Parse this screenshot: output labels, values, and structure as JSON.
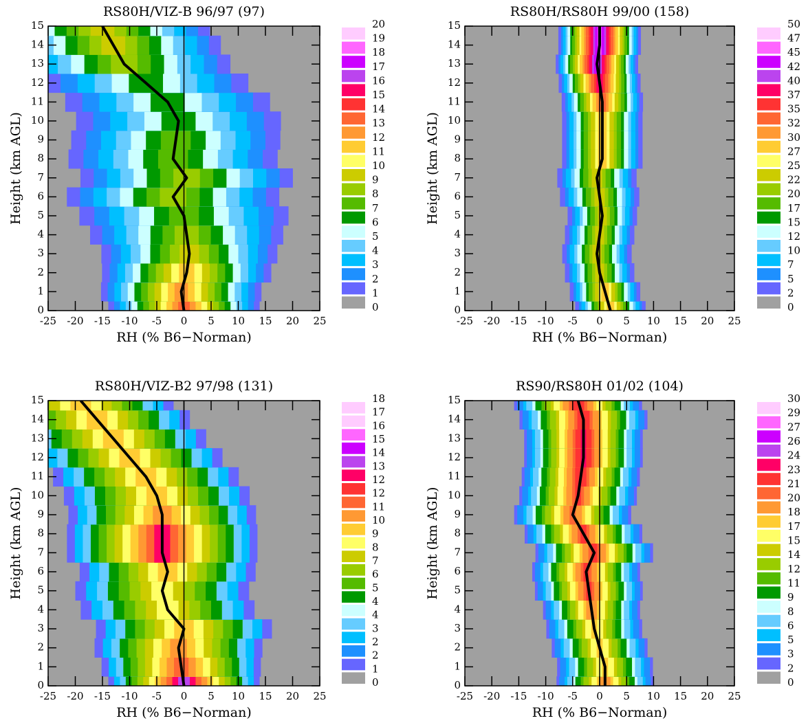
{
  "chart_data": [
    {
      "type": "contour",
      "title": "RS80H/VIZ-B 96/97 (97)",
      "xlabel": "RH (% B6−Norman)",
      "ylabel": "Height (km AGL)",
      "xlim": [
        -25,
        25
      ],
      "ylim": [
        0,
        15
      ],
      "xticks": [
        -25,
        -20,
        -15,
        -10,
        -5,
        0,
        5,
        10,
        15,
        20,
        25
      ],
      "yticks": [
        0,
        1,
        2,
        3,
        4,
        5,
        6,
        7,
        8,
        9,
        10,
        11,
        12,
        13,
        14,
        15
      ],
      "levels": [
        0,
        1,
        2,
        3,
        4,
        5,
        6,
        7,
        8,
        9,
        10,
        11,
        12,
        13,
        14,
        15,
        16,
        17,
        18,
        19,
        20
      ],
      "colors": [
        "#a0a0a0",
        "#6666ff",
        "#1e90ff",
        "#00bfff",
        "#66ccff",
        "#ccffff",
        "#009900",
        "#55bb00",
        "#99cc00",
        "#cccc00",
        "#ffff66",
        "#ffcc33",
        "#ff9933",
        "#ff6633",
        "#ff3333",
        "#ff0066",
        "#bb44ee",
        "#cc00ff",
        "#ff66ff",
        "#ffccff"
      ],
      "heights": [
        0,
        1,
        2,
        3,
        4,
        5,
        6,
        7,
        8,
        9,
        10,
        11,
        12,
        13,
        14,
        15
      ],
      "peak": [
        14,
        13,
        12,
        10,
        9,
        8,
        9,
        9,
        8,
        8,
        7,
        7,
        7,
        9,
        10,
        10
      ],
      "spread": [
        15,
        16,
        17,
        18,
        20,
        22,
        22,
        22,
        22,
        22,
        22,
        22,
        22,
        22,
        22,
        22
      ],
      "mean": [
        0,
        -0.5,
        0.5,
        1,
        0.5,
        0,
        -2,
        0.5,
        -2,
        -1.5,
        -1,
        -3,
        -7,
        -11,
        -13,
        -15
      ],
      "line_color": "#000000"
    },
    {
      "type": "contour",
      "title": "RS80H/RS80H 99/00 (158)",
      "xlabel": "RH (% B6−Norman)",
      "ylabel": "Height (km AGL)",
      "xlim": [
        -25,
        25
      ],
      "ylim": [
        0,
        15
      ],
      "xticks": [
        -25,
        -20,
        -15,
        -10,
        -5,
        0,
        5,
        10,
        15,
        20,
        25
      ],
      "yticks": [
        0,
        1,
        2,
        3,
        4,
        5,
        6,
        7,
        8,
        9,
        10,
        11,
        12,
        13,
        14,
        15
      ],
      "levels": [
        0,
        2,
        5,
        7,
        10,
        12,
        15,
        17,
        20,
        22,
        25,
        27,
        30,
        32,
        35,
        37,
        40,
        42,
        45,
        47,
        50
      ],
      "colors": [
        "#a0a0a0",
        "#6666ff",
        "#1e90ff",
        "#00bfff",
        "#66ccff",
        "#ccffff",
        "#009900",
        "#55bb00",
        "#99cc00",
        "#cccc00",
        "#ffff66",
        "#ffcc33",
        "#ff9933",
        "#ff6633",
        "#ff3333",
        "#ff0066",
        "#bb44ee",
        "#cc00ff",
        "#ff66ff",
        "#ffccff"
      ],
      "heights": [
        0,
        1,
        2,
        3,
        4,
        5,
        6,
        7,
        8,
        9,
        10,
        11,
        12,
        13,
        14,
        15
      ],
      "peak": [
        30,
        30,
        25,
        25,
        25,
        25,
        25,
        25,
        30,
        30,
        30,
        35,
        40,
        45,
        47,
        47
      ],
      "spread": [
        7,
        7,
        7,
        7,
        7,
        7,
        8,
        8,
        8,
        8,
        8,
        8,
        8,
        8,
        8,
        8
      ],
      "mean": [
        2,
        1,
        0,
        -0.5,
        0,
        0.5,
        0,
        -0.5,
        0.5,
        0.5,
        0.5,
        0.5,
        0,
        -0.5,
        0,
        0
      ],
      "line_color": "#000000"
    },
    {
      "type": "contour",
      "title": "RS80H/VIZ-B2 97/98 (131)",
      "xlabel": "RH (% B6−Norman)",
      "ylabel": "Height (km AGL)",
      "xlim": [
        -25,
        25
      ],
      "ylim": [
        0,
        15
      ],
      "xticks": [
        -25,
        -20,
        -15,
        -10,
        -5,
        0,
        5,
        10,
        15,
        20,
        25
      ],
      "yticks": [
        0,
        1,
        2,
        3,
        4,
        5,
        6,
        7,
        8,
        9,
        10,
        11,
        12,
        13,
        14,
        15
      ],
      "levels": [
        0,
        1,
        2,
        2,
        3,
        4,
        4,
        5,
        6,
        7,
        8,
        9,
        10,
        11,
        12,
        12,
        13,
        14,
        15,
        16,
        17,
        18
      ],
      "colors": [
        "#a0a0a0",
        "#6666ff",
        "#1e90ff",
        "#00bfff",
        "#66ccff",
        "#ccffff",
        "#009900",
        "#55bb00",
        "#99cc00",
        "#cccc00",
        "#ffff66",
        "#ffcc33",
        "#ff9933",
        "#ff6633",
        "#ff3333",
        "#ff0066",
        "#bb44ee",
        "#cc00ff",
        "#ff66ff",
        "#ffccff",
        "#ffccff"
      ],
      "heights": [
        0,
        1,
        2,
        3,
        4,
        5,
        6,
        7,
        8,
        9,
        10,
        11,
        12,
        13,
        14,
        15
      ],
      "peak": [
        14,
        12,
        11,
        10,
        9,
        9,
        10,
        13,
        13,
        11,
        10,
        10,
        10,
        10,
        10,
        10
      ],
      "spread": [
        15,
        16,
        17,
        18,
        18,
        18,
        18,
        19,
        19,
        19,
        19,
        19,
        19,
        19,
        19,
        19
      ],
      "mean": [
        0,
        -0.5,
        -1,
        0,
        -3,
        -4,
        -3,
        -4,
        -4,
        -4,
        -5,
        -7,
        -10,
        -13,
        -16,
        -19
      ],
      "line_color": "#000000"
    },
    {
      "type": "contour",
      "title": "RS90/RS80H 01/02 (104)",
      "xlabel": "RH (% B6−Norman)",
      "ylabel": "Height (km AGL)",
      "xlim": [
        -25,
        25
      ],
      "ylim": [
        0,
        15
      ],
      "xticks": [
        -25,
        -20,
        -15,
        -10,
        -5,
        0,
        5,
        10,
        15,
        20,
        25
      ],
      "yticks": [
        0,
        1,
        2,
        3,
        4,
        5,
        6,
        7,
        8,
        9,
        10,
        11,
        12,
        13,
        14,
        15
      ],
      "levels": [
        0,
        2,
        3,
        5,
        6,
        8,
        9,
        11,
        12,
        14,
        15,
        17,
        18,
        20,
        21,
        23,
        24,
        26,
        27,
        29,
        30
      ],
      "colors": [
        "#a0a0a0",
        "#6666ff",
        "#1e90ff",
        "#00bfff",
        "#66ccff",
        "#ccffff",
        "#009900",
        "#55bb00",
        "#99cc00",
        "#cccc00",
        "#ffff66",
        "#ffcc33",
        "#ff9933",
        "#ff6633",
        "#ff3333",
        "#ff0066",
        "#bb44ee",
        "#cc00ff",
        "#ff66ff",
        "#ffccff"
      ],
      "heights": [
        0,
        1,
        2,
        3,
        4,
        5,
        6,
        7,
        8,
        9,
        10,
        11,
        12,
        13,
        14,
        15
      ],
      "peak": [
        20,
        18,
        18,
        18,
        20,
        22,
        22,
        22,
        22,
        21,
        22,
        23,
        24,
        24,
        23,
        23
      ],
      "spread": [
        10,
        10,
        10,
        10,
        10,
        11,
        11,
        12,
        12,
        12,
        12,
        12,
        12,
        12,
        13,
        13
      ],
      "mean": [
        1,
        1,
        0,
        -1,
        -1.5,
        -2,
        -2.5,
        -1,
        -3,
        -5,
        -4,
        -3.5,
        -3,
        -3,
        -3,
        -4
      ],
      "line_color": "#000000"
    }
  ]
}
